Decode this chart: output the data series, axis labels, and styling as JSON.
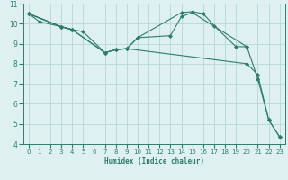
{
  "xlabel": "Humidex (Indice chaleur)",
  "xlim": [
    -0.5,
    23.5
  ],
  "ylim": [
    4,
    11
  ],
  "xticks": [
    0,
    1,
    2,
    3,
    4,
    5,
    6,
    7,
    8,
    9,
    10,
    11,
    12,
    13,
    14,
    15,
    16,
    17,
    18,
    19,
    20,
    21,
    22,
    23
  ],
  "yticks": [
    4,
    5,
    6,
    7,
    8,
    9,
    10,
    11
  ],
  "line_color": "#2d7d6b",
  "bg_color": "#dff0f0",
  "grid_color": "#b5d8d8",
  "lines": [
    {
      "x": [
        0,
        1,
        3,
        4
      ],
      "y": [
        10.5,
        10.1,
        9.85,
        9.7
      ]
    },
    {
      "x": [
        0,
        3,
        4,
        7,
        8,
        9,
        10,
        14,
        15,
        16,
        17,
        19,
        20
      ],
      "y": [
        10.5,
        9.85,
        9.7,
        8.55,
        8.7,
        8.75,
        9.3,
        10.55,
        10.6,
        10.5,
        9.9,
        8.85,
        8.85
      ]
    },
    {
      "x": [
        0,
        3,
        4,
        7,
        8,
        9,
        10,
        13,
        14,
        15,
        20,
        21,
        22,
        23
      ],
      "y": [
        10.5,
        9.85,
        9.7,
        8.55,
        8.7,
        8.75,
        9.3,
        9.4,
        10.35,
        10.55,
        8.85,
        7.25,
        5.2,
        4.35
      ]
    },
    {
      "x": [
        0,
        3,
        4,
        5,
        7,
        8,
        9,
        20,
        21,
        22,
        23
      ],
      "y": [
        10.5,
        9.85,
        9.7,
        9.6,
        8.55,
        8.7,
        8.75,
        8.0,
        7.45,
        5.2,
        4.35
      ]
    }
  ]
}
